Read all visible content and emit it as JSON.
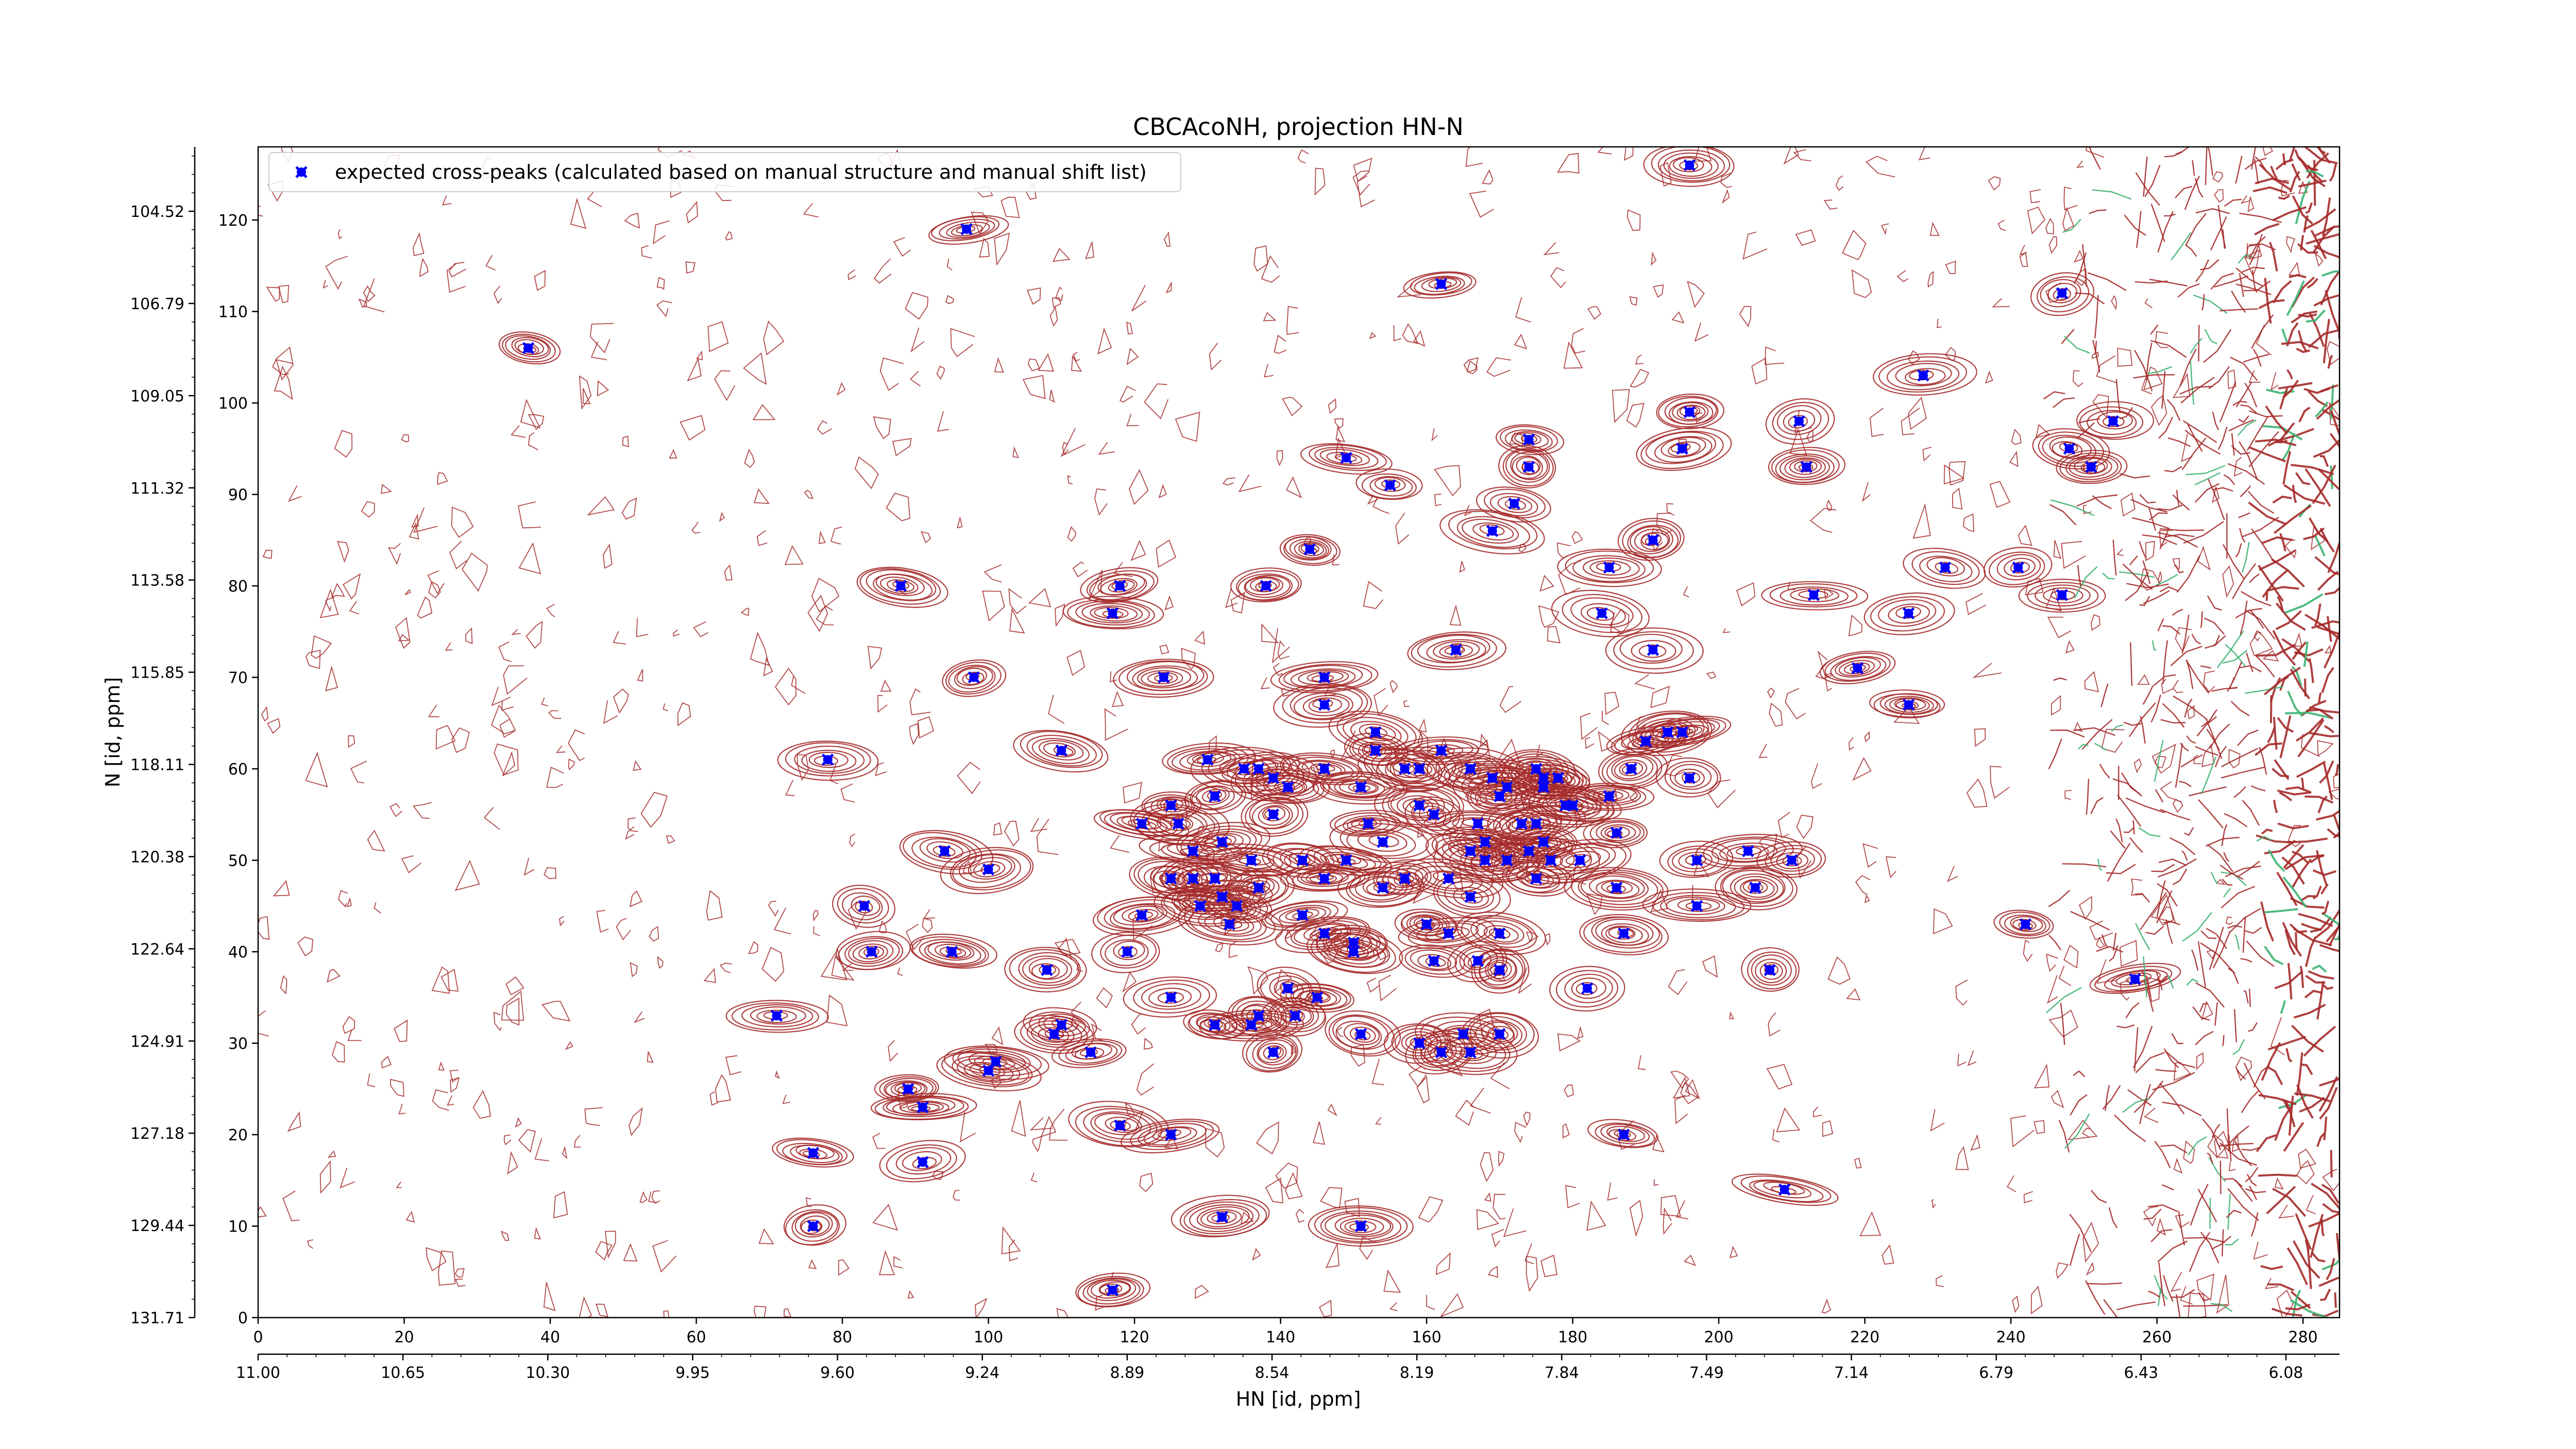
{
  "chart_data": {
    "type": "scatter",
    "title": "CBCAcoNH, projection HN-N",
    "xlabel": "HN [id, ppm]",
    "ylabel": "N [id, ppm]",
    "x_index_range": [
      0,
      285
    ],
    "y_index_range": [
      0,
      128
    ],
    "x_index_ticks": [
      "0",
      "20",
      "40",
      "60",
      "80",
      "100",
      "120",
      "140",
      "160",
      "180",
      "200",
      "220",
      "240",
      "260",
      "280"
    ],
    "x_ppm_ticks": [
      "11.00",
      "10.65",
      "10.30",
      "9.95",
      "9.60",
      "9.24",
      "8.89",
      "8.54",
      "8.19",
      "7.84",
      "7.49",
      "7.14",
      "6.79",
      "6.43",
      "6.08"
    ],
    "y_index_ticks": [
      "0",
      "10",
      "20",
      "30",
      "40",
      "50",
      "60",
      "70",
      "80",
      "90",
      "100",
      "110",
      "120"
    ],
    "y_ppm_ticks": [
      "104.52",
      "106.79",
      "109.05",
      "111.32",
      "113.58",
      "115.85",
      "118.11",
      "120.38",
      "122.64",
      "124.91",
      "127.18",
      "129.44",
      "131.71"
    ],
    "legend": {
      "position": "top-left",
      "label": "expected cross-peaks (calculated based on manual structure and manual shift list)"
    },
    "colors": {
      "marker": "#0000ff",
      "contour_positive": "#a52a2a",
      "contour_negative": "#3cb371"
    },
    "series": [
      {
        "name": "expected cross-peaks (calculated based on manual structure and manual shift list)",
        "marker": "x",
        "points": [
          [
            196,
            126
          ],
          [
            97,
            119
          ],
          [
            162,
            113
          ],
          [
            247,
            112
          ],
          [
            37,
            106
          ],
          [
            228,
            103
          ],
          [
            211,
            98
          ],
          [
            196,
            99
          ],
          [
            254,
            98
          ],
          [
            248,
            95
          ],
          [
            195,
            95
          ],
          [
            251,
            93
          ],
          [
            212,
            93
          ],
          [
            174,
            96
          ],
          [
            174,
            93
          ],
          [
            149,
            94
          ],
          [
            155,
            91
          ],
          [
            172,
            89
          ],
          [
            169,
            86
          ],
          [
            191,
            85
          ],
          [
            144,
            84
          ],
          [
            241,
            82
          ],
          [
            185,
            82
          ],
          [
            138,
            80
          ],
          [
            118,
            80
          ],
          [
            88,
            80
          ],
          [
            213,
            79
          ],
          [
            247,
            79
          ],
          [
            184,
            77
          ],
          [
            226,
            77
          ],
          [
            231,
            82
          ],
          [
            117,
            77
          ],
          [
            164,
            73
          ],
          [
            191,
            73
          ],
          [
            124,
            70
          ],
          [
            98,
            70
          ],
          [
            146,
            70
          ],
          [
            219,
            71
          ],
          [
            226,
            67
          ],
          [
            146,
            67
          ],
          [
            110,
            62
          ],
          [
            78,
            61
          ],
          [
            130,
            61
          ],
          [
            153,
            64
          ],
          [
            153,
            62
          ],
          [
            162,
            62
          ],
          [
            193,
            64
          ],
          [
            195,
            64
          ],
          [
            190,
            63
          ],
          [
            135,
            60
          ],
          [
            137,
            60
          ],
          [
            139,
            59
          ],
          [
            146,
            60
          ],
          [
            157,
            60
          ],
          [
            159,
            60
          ],
          [
            166,
            60
          ],
          [
            175,
            60
          ],
          [
            188,
            60
          ],
          [
            196,
            59
          ],
          [
            185,
            57
          ],
          [
            171,
            58
          ],
          [
            169,
            59
          ],
          [
            176,
            59
          ],
          [
            178,
            59
          ],
          [
            131,
            57
          ],
          [
            141,
            58
          ],
          [
            151,
            58
          ],
          [
            170,
            57
          ],
          [
            159,
            56
          ],
          [
            161,
            55
          ],
          [
            125,
            56
          ],
          [
            176,
            58
          ],
          [
            179,
            56
          ],
          [
            180,
            56
          ],
          [
            121,
            54
          ],
          [
            126,
            54
          ],
          [
            139,
            55
          ],
          [
            152,
            54
          ],
          [
            167,
            54
          ],
          [
            173,
            54
          ],
          [
            175,
            54
          ],
          [
            168,
            52
          ],
          [
            176,
            52
          ],
          [
            186,
            53
          ],
          [
            132,
            52
          ],
          [
            154,
            52
          ],
          [
            128,
            51
          ],
          [
            166,
            51
          ],
          [
            174,
            51
          ],
          [
            94,
            51
          ],
          [
            136,
            50
          ],
          [
            143,
            50
          ],
          [
            149,
            50
          ],
          [
            168,
            50
          ],
          [
            171,
            50
          ],
          [
            177,
            50
          ],
          [
            181,
            50
          ],
          [
            197,
            50
          ],
          [
            204,
            51
          ],
          [
            210,
            50
          ],
          [
            100,
            49
          ],
          [
            125,
            48
          ],
          [
            128,
            48
          ],
          [
            131,
            48
          ],
          [
            146,
            48
          ],
          [
            157,
            48
          ],
          [
            163,
            48
          ],
          [
            175,
            48
          ],
          [
            186,
            47
          ],
          [
            205,
            47
          ],
          [
            137,
            47
          ],
          [
            154,
            47
          ],
          [
            132,
            46
          ],
          [
            166,
            46
          ],
          [
            129,
            45
          ],
          [
            83,
            45
          ],
          [
            134,
            45
          ],
          [
            143,
            44
          ],
          [
            197,
            45
          ],
          [
            121,
            44
          ],
          [
            133,
            43
          ],
          [
            160,
            43
          ],
          [
            163,
            42
          ],
          [
            170,
            42
          ],
          [
            242,
            43
          ],
          [
            146,
            42
          ],
          [
            187,
            42
          ],
          [
            119,
            40
          ],
          [
            84,
            40
          ],
          [
            150,
            40
          ],
          [
            95,
            40
          ],
          [
            150,
            41
          ],
          [
            161,
            39
          ],
          [
            167,
            39
          ],
          [
            108,
            38
          ],
          [
            125,
            35
          ],
          [
            207,
            38
          ],
          [
            170,
            38
          ],
          [
            141,
            36
          ],
          [
            145,
            35
          ],
          [
            182,
            36
          ],
          [
            257,
            37
          ],
          [
            131,
            32
          ],
          [
            136,
            32
          ],
          [
            137,
            33
          ],
          [
            142,
            33
          ],
          [
            71,
            33
          ],
          [
            109,
            31
          ],
          [
            110,
            32
          ],
          [
            114,
            29
          ],
          [
            151,
            31
          ],
          [
            159,
            30
          ],
          [
            165,
            31
          ],
          [
            170,
            31
          ],
          [
            139,
            29
          ],
          [
            162,
            29
          ],
          [
            166,
            29
          ],
          [
            101,
            28
          ],
          [
            100,
            27
          ],
          [
            89,
            25
          ],
          [
            91,
            23
          ],
          [
            118,
            21
          ],
          [
            125,
            20
          ],
          [
            187,
            20
          ],
          [
            76,
            18
          ],
          [
            91,
            17
          ],
          [
            209,
            14
          ],
          [
            76,
            10
          ],
          [
            132,
            11
          ],
          [
            151,
            10
          ],
          [
            117,
            3
          ]
        ]
      }
    ]
  }
}
